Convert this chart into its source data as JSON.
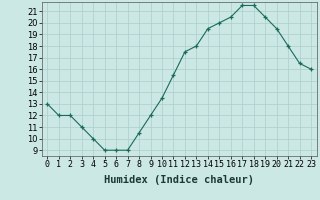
{
  "x": [
    0,
    1,
    2,
    3,
    4,
    5,
    6,
    7,
    8,
    9,
    10,
    11,
    12,
    13,
    14,
    15,
    16,
    17,
    18,
    19,
    20,
    21,
    22,
    23
  ],
  "y": [
    13,
    12,
    12,
    11,
    10,
    9,
    9,
    9,
    10.5,
    12,
    13.5,
    15.5,
    17.5,
    18,
    19.5,
    20,
    20.5,
    21.5,
    21.5,
    20.5,
    19.5,
    18,
    16.5,
    16
  ],
  "line_color": "#1a6b5a",
  "marker": "+",
  "marker_color": "#1a6b5a",
  "bg_color": "#cce8e4",
  "grid_color": "#aaceca",
  "xlabel": "Humidex (Indice chaleur)",
  "ylim": [
    8.5,
    21.8
  ],
  "xlim": [
    -0.5,
    23.5
  ],
  "yticks": [
    9,
    10,
    11,
    12,
    13,
    14,
    15,
    16,
    17,
    18,
    19,
    20,
    21
  ],
  "xtick_labels": [
    "0",
    "1",
    "2",
    "3",
    "4",
    "5",
    "6",
    "7",
    "8",
    "9",
    "10",
    "11",
    "12",
    "13",
    "14",
    "15",
    "16",
    "17",
    "18",
    "19",
    "20",
    "21",
    "22",
    "23"
  ],
  "label_fontsize": 7.5,
  "tick_fontsize": 6.0
}
